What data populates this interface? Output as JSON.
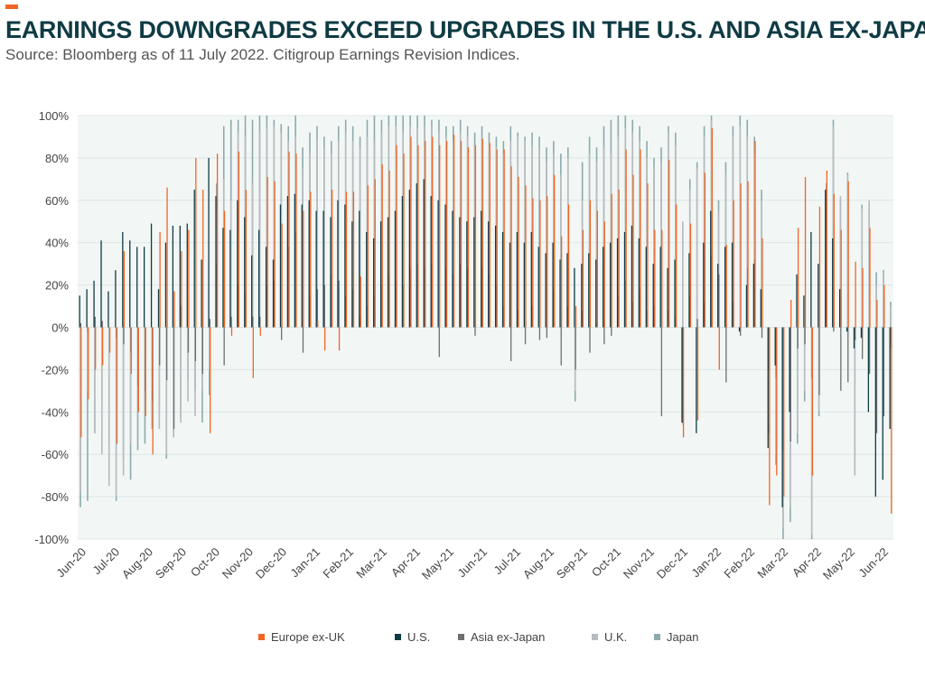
{
  "header": {
    "title": "EARNINGS DOWNGRADES EXCEED UPGRADES IN THE U.S. AND ASIA EX-JAPAN",
    "subtitle": "Source: Bloomberg as of 11 July 2022. Citigroup Earnings Revision Indices."
  },
  "colors": {
    "accent": "#f26522",
    "title": "#0f3b44",
    "plot_background": "#f2f7f6"
  },
  "chart_data": {
    "type": "bar",
    "title": "EARNINGS DOWNGRADES EXCEED UPGRADES IN THE U.S. AND ASIA EX-JAPAN",
    "xlabel": "",
    "ylabel": "",
    "ylim": [
      -1,
      1
    ],
    "yticks": [
      -1,
      -0.8,
      -0.6,
      -0.4,
      -0.2,
      0,
      0.2,
      0.4,
      0.6,
      0.8,
      1
    ],
    "ytick_labels": [
      "-100%",
      "-80%",
      "-60%",
      "-40%",
      "-20%",
      "0%",
      "20%",
      "40%",
      "60%",
      "80%",
      "100%"
    ],
    "x_ticks": [
      "Jun-20",
      "Jul-20",
      "Aug-20",
      "Sep-20",
      "Oct-20",
      "Nov-20",
      "Dec-20",
      "Jan-21",
      "Feb-21",
      "Mar-21",
      "Apr-21",
      "May-21",
      "Jun-21",
      "Jul-21",
      "Aug-21",
      "Sep-21",
      "Oct-21",
      "Nov-21",
      "Dec-21",
      "Jan-22",
      "Feb-22",
      "Mar-22",
      "Apr-22",
      "May-22",
      "Jun-22"
    ],
    "grid": true,
    "legend_position": "bottom",
    "series": [
      {
        "name": "Europe ex-UK",
        "color": "#f26522",
        "values": [
          -0.52,
          -0.34,
          -0.2,
          -0.18,
          -0.12,
          -0.55,
          0.36,
          -0.22,
          -0.4,
          -0.42,
          -0.6,
          0.45,
          0.66,
          0.17,
          0.36,
          0.46,
          0.8,
          0.65,
          -0.5,
          0.82,
          0.55,
          -0.04,
          0.83,
          0.65,
          -0.24,
          -0.04,
          0.71,
          0.69,
          0.49,
          0.83,
          0.82,
          0.55,
          0.64,
          0.03,
          -0.11,
          0.65,
          -0.11,
          0.64,
          0.64,
          0.24,
          0.67,
          0.7,
          0.77,
          0.74,
          0.86,
          0.82,
          0.9,
          0.86,
          0.88,
          0.9,
          0.86,
          0.88,
          0.91,
          0.88,
          0.85,
          0.86,
          0.89,
          0.87,
          0.84,
          0.84,
          0.76,
          0.71,
          0.67,
          0.61,
          0.6,
          0.62,
          0.72,
          0.43,
          0.58,
          0.1,
          0.46,
          0.6,
          0.55,
          0.5,
          0.63,
          0.65,
          0.84,
          0.72,
          0.84,
          0.68,
          0.46,
          0.46,
          0.79,
          0.58,
          -0.52,
          0.49,
          -0.44,
          0.73,
          0.94,
          -0.2,
          0.39,
          0.6,
          0.68,
          0.69,
          0.88,
          0.42,
          -0.84,
          -0.7,
          -0.8,
          0.13,
          0.47,
          0.71,
          -0.7,
          0.57,
          0.74,
          0.63,
          0.46,
          0.69,
          0.31,
          0.28,
          0.47,
          0.13,
          0.2,
          -0.88
        ]
      },
      {
        "name": "U.S.",
        "color": "#0f3b44",
        "values": [
          0.15,
          0.18,
          0.22,
          0.41,
          0.17,
          0.27,
          0.45,
          0.41,
          0.38,
          0.38,
          0.49,
          0.18,
          0.4,
          0.48,
          0.48,
          0.49,
          0.65,
          0.32,
          0.8,
          0.62,
          0.47,
          0.46,
          0.6,
          0.52,
          0.34,
          0.46,
          0.38,
          0.32,
          0.58,
          0.62,
          0.63,
          0.58,
          0.6,
          0.55,
          0.55,
          0.52,
          0.6,
          0.58,
          0.5,
          0.55,
          0.45,
          0.42,
          0.5,
          0.52,
          0.55,
          0.62,
          0.65,
          0.68,
          0.7,
          0.62,
          0.6,
          0.58,
          0.55,
          0.52,
          0.5,
          0.52,
          0.55,
          0.5,
          0.48,
          0.45,
          0.4,
          0.45,
          0.4,
          0.45,
          0.38,
          0.35,
          0.4,
          0.32,
          0.35,
          0.28,
          0.3,
          0.35,
          0.32,
          0.38,
          0.4,
          0.42,
          0.45,
          0.48,
          0.42,
          0.38,
          0.3,
          0.38,
          0.28,
          0.32,
          -0.45,
          0.35,
          -0.5,
          0.4,
          0.55,
          0.3,
          0.38,
          0.4,
          -0.02,
          0.2,
          0.3,
          0.18,
          -0.57,
          -0.18,
          -0.85,
          -0.4,
          0.25,
          0.15,
          0.45,
          0.3,
          0.65,
          0.42,
          0.18,
          -0.02,
          -0.1,
          -0.05,
          -0.4,
          -0.8,
          -0.72,
          -0.48
        ]
      },
      {
        "name": "Asia ex-Japan",
        "color": "#6d6e70",
        "values": [
          0.02,
          -0.02,
          0.05,
          0.03,
          0.0,
          -0.05,
          -0.08,
          -0.12,
          -0.28,
          -0.3,
          -0.35,
          -0.18,
          -0.25,
          -0.48,
          0.1,
          -0.12,
          -0.16,
          -0.22,
          0.04,
          0.3,
          -0.18,
          0.05,
          0.2,
          0.16,
          0.05,
          0.05,
          0.2,
          0.22,
          -0.06,
          0.38,
          0.45,
          -0.12,
          0.15,
          0.18,
          0.2,
          0.25,
          0.22,
          0.15,
          0.18,
          0.05,
          0.1,
          0.15,
          0.2,
          0.25,
          0.22,
          0.2,
          0.28,
          0.3,
          0.28,
          0.3,
          -0.14,
          0.28,
          0.25,
          0.3,
          0.28,
          -0.04,
          0.28,
          0.25,
          0.2,
          0.1,
          -0.16,
          0.08,
          -0.08,
          0.1,
          -0.06,
          -0.05,
          0.18,
          -0.18,
          0.1,
          -0.2,
          0.08,
          -0.12,
          0.02,
          -0.08,
          -0.04,
          0.15,
          0.22,
          0.12,
          0.18,
          0.08,
          0.1,
          -0.42,
          0.08,
          0.05,
          -0.46,
          0.15,
          0.04,
          0.12,
          0.34,
          0.25,
          -0.26,
          0.12,
          -0.04,
          0.28,
          0.32,
          -0.05,
          -0.2,
          -0.24,
          -0.58,
          -0.54,
          -0.1,
          -0.08,
          -0.24,
          -0.32,
          0.68,
          -0.02,
          -0.3,
          -0.26,
          -0.06,
          -0.15,
          -0.22,
          -0.5,
          -0.42,
          -0.1
        ]
      },
      {
        "name": "U.K.",
        "color": "#b8bbbd",
        "values": [
          -0.78,
          -0.3,
          -0.5,
          -0.6,
          -0.75,
          -0.8,
          -0.7,
          -0.55,
          -0.1,
          -0.15,
          -0.3,
          -0.48,
          -0.6,
          -0.52,
          -0.45,
          -0.35,
          -0.42,
          -0.3,
          -0.2,
          0.55,
          0.7,
          0.6,
          0.92,
          0.9,
          0.68,
          0.92,
          0.94,
          0.95,
          0.92,
          0.88,
          0.9,
          0.75,
          0.82,
          0.88,
          0.85,
          0.82,
          0.88,
          0.92,
          0.88,
          0.85,
          0.9,
          0.88,
          0.92,
          0.95,
          0.95,
          0.92,
          0.95,
          0.94,
          0.95,
          0.95,
          0.92,
          0.9,
          0.88,
          0.92,
          0.9,
          0.86,
          0.88,
          0.86,
          0.85,
          0.82,
          0.88,
          0.9,
          0.88,
          0.86,
          0.85,
          0.78,
          0.82,
          0.72,
          0.8,
          -0.3,
          0.6,
          0.82,
          0.78,
          0.85,
          0.82,
          0.9,
          0.94,
          0.92,
          0.88,
          0.8,
          0.76,
          0.78,
          0.92,
          0.86,
          0.5,
          0.65,
          0.75,
          0.9,
          0.98,
          0.55,
          0.72,
          0.9,
          0.95,
          0.9,
          0.82,
          0.6,
          -0.45,
          -0.6,
          -0.95,
          -0.85,
          -0.5,
          -0.3,
          -0.98,
          -0.4,
          0.6,
          0.95,
          0.62,
          0.72,
          -0.7,
          0.56,
          0.6,
          0.2,
          0.26,
          0.1
        ]
      },
      {
        "name": "Japan",
        "color": "#8eaaac",
        "values": [
          -0.85,
          -0.82,
          -0.5,
          -0.35,
          -0.55,
          -0.82,
          -0.62,
          -0.72,
          -0.58,
          -0.55,
          -0.48,
          -0.42,
          -0.62,
          -0.52,
          -0.42,
          -0.25,
          -0.3,
          -0.45,
          -0.32,
          0.68,
          0.95,
          0.98,
          0.98,
          1.0,
          0.98,
          1.0,
          1.0,
          0.98,
          0.96,
          0.95,
          1.0,
          0.85,
          0.92,
          0.95,
          0.9,
          0.88,
          0.95,
          0.98,
          0.95,
          0.9,
          0.98,
          1.0,
          0.98,
          1.0,
          1.0,
          1.0,
          1.0,
          1.0,
          1.0,
          0.98,
          0.98,
          0.95,
          0.95,
          0.98,
          0.95,
          0.92,
          0.95,
          0.92,
          0.9,
          0.88,
          0.95,
          0.92,
          0.9,
          0.92,
          0.9,
          0.85,
          0.88,
          0.82,
          0.85,
          -0.35,
          0.78,
          0.9,
          0.85,
          0.95,
          0.98,
          1.0,
          1.0,
          0.98,
          0.95,
          0.88,
          0.8,
          0.85,
          0.95,
          0.92,
          0.48,
          0.7,
          0.78,
          0.95,
          1.0,
          0.6,
          0.78,
          0.95,
          1.0,
          0.98,
          0.9,
          0.65,
          -0.5,
          -0.65,
          -1.0,
          -0.92,
          -0.55,
          -0.35,
          -1.0,
          -0.42,
          0.62,
          0.98,
          0.6,
          0.73,
          -0.68,
          0.58,
          0.56,
          0.26,
          0.27,
          0.12
        ]
      }
    ]
  }
}
